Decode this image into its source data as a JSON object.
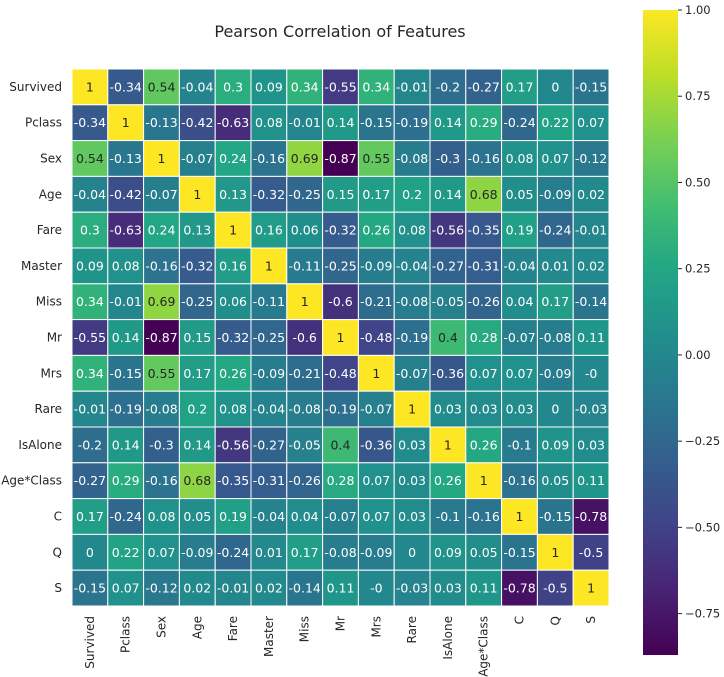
{
  "chart_data": {
    "type": "heatmap",
    "title": "Pearson Correlation of Features",
    "xlabel": "",
    "ylabel": "",
    "labels": [
      "Survived",
      "Pclass",
      "Sex",
      "Age",
      "Fare",
      "Master",
      "Miss",
      "Mr",
      "Mrs",
      "Rare",
      "IsAlone",
      "Age*Class",
      "C",
      "Q",
      "S"
    ],
    "values": [
      [
        1,
        -0.34,
        0.54,
        -0.04,
        0.3,
        0.09,
        0.34,
        -0.55,
        0.34,
        -0.01,
        -0.2,
        -0.27,
        0.17,
        0,
        -0.15
      ],
      [
        -0.34,
        1,
        -0.13,
        -0.42,
        -0.63,
        0.08,
        -0.01,
        0.14,
        -0.15,
        -0.19,
        0.14,
        0.29,
        -0.24,
        0.22,
        0.07
      ],
      [
        0.54,
        -0.13,
        1,
        -0.07,
        0.24,
        -0.16,
        0.69,
        -0.87,
        0.55,
        -0.08,
        -0.3,
        -0.16,
        0.08,
        0.07,
        -0.12
      ],
      [
        -0.04,
        -0.42,
        -0.07,
        1,
        0.13,
        -0.32,
        -0.25,
        0.15,
        0.17,
        0.2,
        0.14,
        0.68,
        0.05,
        -0.09,
        0.02
      ],
      [
        0.3,
        -0.63,
        0.24,
        0.13,
        1,
        0.16,
        0.06,
        -0.32,
        0.26,
        0.08,
        -0.56,
        -0.35,
        0.19,
        -0.24,
        -0.01
      ],
      [
        0.09,
        0.08,
        -0.16,
        -0.32,
        0.16,
        1,
        -0.11,
        -0.25,
        -0.09,
        -0.04,
        -0.27,
        -0.31,
        -0.04,
        0.01,
        0.02
      ],
      [
        0.34,
        -0.01,
        0.69,
        -0.25,
        0.06,
        -0.11,
        1,
        -0.6,
        -0.21,
        -0.08,
        -0.05,
        -0.26,
        0.04,
        0.17,
        -0.14
      ],
      [
        -0.55,
        0.14,
        -0.87,
        0.15,
        -0.32,
        -0.25,
        -0.6,
        1,
        -0.48,
        -0.19,
        0.4,
        0.28,
        -0.07,
        -0.08,
        0.11
      ],
      [
        0.34,
        -0.15,
        0.55,
        0.17,
        0.26,
        -0.09,
        -0.21,
        -0.48,
        1,
        -0.07,
        -0.36,
        0.07,
        0.07,
        -0.09,
        "-0"
      ],
      [
        -0.01,
        -0.19,
        -0.08,
        0.2,
        0.08,
        -0.04,
        -0.08,
        -0.19,
        -0.07,
        1,
        0.03,
        0.03,
        0.03,
        0,
        -0.03
      ],
      [
        -0.2,
        0.14,
        -0.3,
        0.14,
        -0.56,
        -0.27,
        -0.05,
        0.4,
        -0.36,
        0.03,
        1,
        0.26,
        -0.1,
        0.09,
        0.03
      ],
      [
        -0.27,
        0.29,
        -0.16,
        0.68,
        -0.35,
        -0.31,
        -0.26,
        0.28,
        0.07,
        0.03,
        0.26,
        1,
        -0.16,
        0.05,
        0.11
      ],
      [
        0.17,
        -0.24,
        0.08,
        0.05,
        0.19,
        -0.04,
        0.04,
        -0.07,
        0.07,
        0.03,
        -0.1,
        -0.16,
        1,
        -0.15,
        -0.78
      ],
      [
        0,
        0.22,
        0.07,
        -0.09,
        -0.24,
        0.01,
        0.17,
        -0.08,
        -0.09,
        0,
        0.09,
        0.05,
        -0.15,
        1,
        -0.5
      ],
      [
        -0.15,
        0.07,
        -0.12,
        0.02,
        -0.01,
        0.02,
        -0.14,
        0.11,
        "-0",
        -0.03,
        0.03,
        0.11,
        -0.78,
        -0.5,
        1
      ]
    ],
    "colormap": "viridis",
    "colorbar": {
      "range": [
        -0.87,
        1.0
      ],
      "ticks": [
        1.0,
        0.75,
        0.5,
        0.25,
        0.0,
        -0.25,
        -0.5,
        -0.75
      ],
      "tick_labels": [
        "1.00",
        "0.75",
        "0.50",
        "0.25",
        "0.00",
        "−0.25",
        "−0.50",
        "−0.75"
      ]
    },
    "cell_border_color": "#ffffff",
    "grid": false,
    "legend": "colorbar-right"
  }
}
